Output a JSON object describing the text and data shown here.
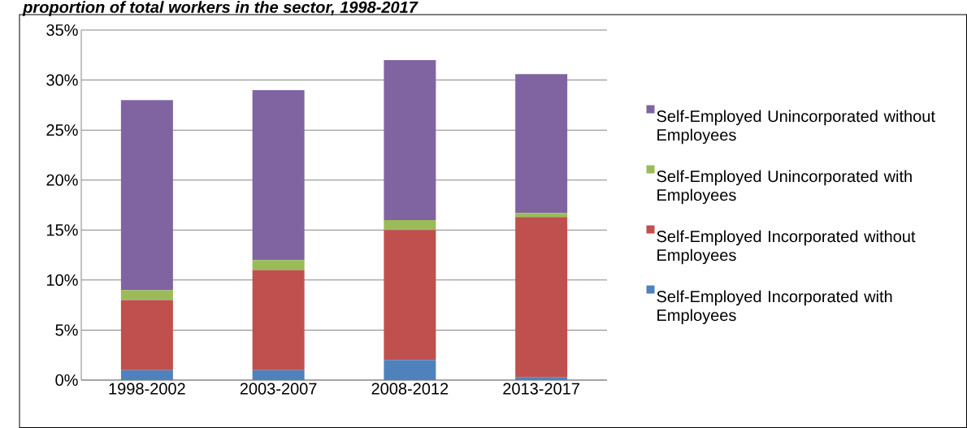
{
  "chart_data": {
    "type": "bar",
    "stacked": true,
    "title": "proportion of total workers in the sector, 1998-2017",
    "categories": [
      "1998-2002",
      "2003-2007",
      "2008-2012",
      "2013-2017"
    ],
    "series": [
      {
        "name": "Self-Employed Incorporated with Employees",
        "color": "#4f81bd",
        "values": [
          1,
          1,
          2,
          0.3
        ]
      },
      {
        "name": "Self-Employed Incorporated without Employees",
        "color": "#c0504d",
        "values": [
          7,
          10,
          13,
          16
        ]
      },
      {
        "name": "Self-Employed Unincorporated with Employees",
        "color": "#9bbb59",
        "values": [
          1,
          1,
          1,
          0.4
        ]
      },
      {
        "name": "Self-Employed Unincorporated without Employees",
        "color": "#8064a2",
        "values": [
          19,
          17,
          16,
          13.9
        ]
      }
    ],
    "ylim": [
      0,
      35
    ],
    "yticks": [
      {
        "value": 0,
        "label": "0%"
      },
      {
        "value": 5,
        "label": "5%"
      },
      {
        "value": 10,
        "label": "10%"
      },
      {
        "value": 15,
        "label": "15%"
      },
      {
        "value": 20,
        "label": "20%"
      },
      {
        "value": 25,
        "label": "25%"
      },
      {
        "value": 30,
        "label": "30%"
      },
      {
        "value": 35,
        "label": "35%"
      }
    ],
    "grid": "y",
    "legend": "right"
  }
}
